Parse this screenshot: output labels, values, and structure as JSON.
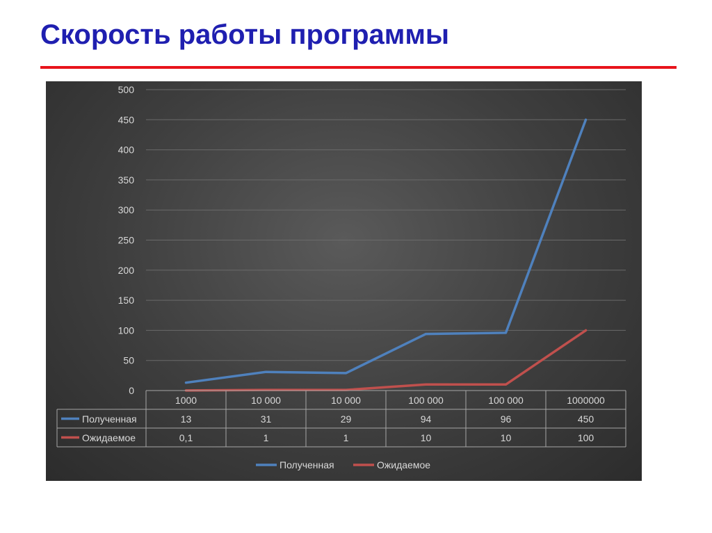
{
  "slide": {
    "title": "Скорость работы программы"
  },
  "colors": {
    "title": "#1f1fb0",
    "rule": "#e8141b",
    "series_1": "#4f81bd",
    "series_2": "#c0504d"
  },
  "chart_data": {
    "type": "line",
    "categories": [
      "1000",
      "10 000",
      "10 000",
      "100 000",
      "100 000",
      "1000000"
    ],
    "series": [
      {
        "name": "Полученная",
        "values": [
          13,
          31,
          29,
          94,
          96,
          450
        ],
        "labels": [
          "13",
          "31",
          "29",
          "94",
          "96",
          "450"
        ],
        "color": "#4f81bd"
      },
      {
        "name": "Ожидаемое",
        "values": [
          0.1,
          1,
          1,
          10,
          10,
          100
        ],
        "labels": [
          "0,1",
          "1",
          "1",
          "10",
          "10",
          "100"
        ],
        "color": "#c0504d"
      }
    ],
    "y_ticks": [
      0,
      50,
      100,
      150,
      200,
      250,
      300,
      350,
      400,
      450,
      500
    ],
    "ylim": [
      0,
      500
    ],
    "grid": true,
    "data_table": true,
    "legend": "bottom"
  }
}
